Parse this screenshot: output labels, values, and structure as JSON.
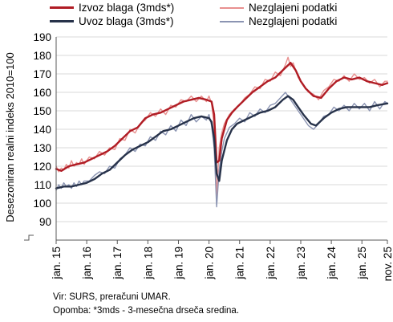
{
  "chart_data": {
    "type": "line",
    "ylabel": "Desezoniran realni indeks 2010=100",
    "ylim": [
      80,
      190
    ],
    "yticks": [
      90,
      100,
      110,
      120,
      130,
      140,
      150,
      160,
      170,
      180,
      190
    ],
    "xticks": [
      "jan. 15",
      "jan. 16",
      "jan. 17",
      "jan. 18",
      "jan. 19",
      "jan. 20",
      "jan. 21",
      "jan. 22",
      "jan. 23",
      "jan. 24",
      "jan. 25",
      "nov. 25"
    ],
    "x_range": [
      "2015-01",
      "2025-11"
    ],
    "grid": true,
    "legend_position": "top",
    "axis_break": true,
    "series": [
      {
        "name": "Izvoz blaga (3mds*)",
        "color": "#b01c24",
        "width": 2.4,
        "points": [
          [
            "2015-01",
            118.5
          ],
          [
            "2015-03",
            117.5
          ],
          [
            "2015-06",
            120
          ],
          [
            "2015-09",
            121
          ],
          [
            "2015-12",
            122
          ],
          [
            "2016-03",
            124
          ],
          [
            "2016-06",
            126
          ],
          [
            "2016-09",
            128
          ],
          [
            "2016-12",
            131
          ],
          [
            "2017-03",
            135
          ],
          [
            "2017-06",
            139
          ],
          [
            "2017-09",
            141
          ],
          [
            "2017-12",
            146
          ],
          [
            "2018-03",
            148
          ],
          [
            "2018-06",
            149
          ],
          [
            "2018-09",
            151
          ],
          [
            "2018-12",
            153
          ],
          [
            "2019-03",
            155
          ],
          [
            "2019-06",
            156
          ],
          [
            "2019-09",
            157
          ],
          [
            "2019-12",
            156
          ],
          [
            "2020-02",
            155
          ],
          [
            "2020-03",
            148
          ],
          [
            "2020-04",
            122
          ],
          [
            "2020-05",
            123
          ],
          [
            "2020-06",
            135
          ],
          [
            "2020-08",
            145
          ],
          [
            "2020-10",
            149
          ],
          [
            "2020-12",
            152
          ],
          [
            "2021-03",
            156
          ],
          [
            "2021-06",
            160
          ],
          [
            "2021-09",
            163
          ],
          [
            "2021-12",
            166
          ],
          [
            "2022-03",
            168
          ],
          [
            "2022-06",
            172
          ],
          [
            "2022-09",
            176
          ],
          [
            "2022-11",
            172
          ],
          [
            "2023-01",
            166
          ],
          [
            "2023-03",
            162
          ],
          [
            "2023-06",
            158
          ],
          [
            "2023-09",
            157
          ],
          [
            "2023-12",
            162
          ],
          [
            "2024-03",
            166
          ],
          [
            "2024-06",
            168
          ],
          [
            "2024-09",
            167
          ],
          [
            "2024-12",
            168
          ],
          [
            "2025-03",
            166
          ],
          [
            "2025-06",
            165
          ],
          [
            "2025-09",
            164
          ],
          [
            "2025-11",
            165
          ]
        ]
      },
      {
        "name": "Nezglajeni podatki",
        "color": "#e8908f",
        "width": 1.4,
        "points": [
          [
            "2015-01",
            120
          ],
          [
            "2015-02",
            117
          ],
          [
            "2015-03",
            119
          ],
          [
            "2015-04",
            118
          ],
          [
            "2015-05",
            121
          ],
          [
            "2015-06",
            119
          ],
          [
            "2015-07",
            123
          ],
          [
            "2015-08",
            120
          ],
          [
            "2015-09",
            122
          ],
          [
            "2015-10",
            121
          ],
          [
            "2015-11",
            124
          ],
          [
            "2015-12",
            121
          ],
          [
            "2016-02",
            125
          ],
          [
            "2016-04",
            124
          ],
          [
            "2016-06",
            128
          ],
          [
            "2016-08",
            126
          ],
          [
            "2016-10",
            130
          ],
          [
            "2016-12",
            129
          ],
          [
            "2017-02",
            135
          ],
          [
            "2017-04",
            134
          ],
          [
            "2017-06",
            140
          ],
          [
            "2017-08",
            138
          ],
          [
            "2017-10",
            143
          ],
          [
            "2017-12",
            145
          ],
          [
            "2018-02",
            149
          ],
          [
            "2018-04",
            147
          ],
          [
            "2018-06",
            151
          ],
          [
            "2018-08",
            148
          ],
          [
            "2018-10",
            153
          ],
          [
            "2018-12",
            152
          ],
          [
            "2019-02",
            156
          ],
          [
            "2019-04",
            155
          ],
          [
            "2019-06",
            158
          ],
          [
            "2019-08",
            155
          ],
          [
            "2019-10",
            158
          ],
          [
            "2019-12",
            155
          ],
          [
            "2020-01",
            158
          ],
          [
            "2020-02",
            154
          ],
          [
            "2020-03",
            142
          ],
          [
            "2020-04",
            104
          ],
          [
            "2020-05",
            130
          ],
          [
            "2020-06",
            138
          ],
          [
            "2020-07",
            143
          ],
          [
            "2020-09",
            148
          ],
          [
            "2020-11",
            151
          ],
          [
            "2021-01",
            153
          ],
          [
            "2021-03",
            157
          ],
          [
            "2021-05",
            159
          ],
          [
            "2021-07",
            163
          ],
          [
            "2021-09",
            162
          ],
          [
            "2021-11",
            167
          ],
          [
            "2022-01",
            166
          ],
          [
            "2022-03",
            171
          ],
          [
            "2022-05",
            169
          ],
          [
            "2022-07",
            175
          ],
          [
            "2022-08",
            179
          ],
          [
            "2022-09",
            174
          ],
          [
            "2022-10",
            176
          ],
          [
            "2022-12",
            168
          ],
          [
            "2023-02",
            164
          ],
          [
            "2023-04",
            160
          ],
          [
            "2023-06",
            159
          ],
          [
            "2023-08",
            156
          ],
          [
            "2023-10",
            161
          ],
          [
            "2023-12",
            163
          ],
          [
            "2024-02",
            167
          ],
          [
            "2024-04",
            166
          ],
          [
            "2024-06",
            169
          ],
          [
            "2024-08",
            166
          ],
          [
            "2024-10",
            170
          ],
          [
            "2024-12",
            167
          ],
          [
            "2025-02",
            168
          ],
          [
            "2025-04",
            165
          ],
          [
            "2025-06",
            167
          ],
          [
            "2025-08",
            163
          ],
          [
            "2025-10",
            166
          ],
          [
            "2025-11",
            166
          ]
        ]
      },
      {
        "name": "Uvoz blaga (3mds*)",
        "color": "#27324a",
        "width": 2.4,
        "points": [
          [
            "2015-01",
            108
          ],
          [
            "2015-04",
            109
          ],
          [
            "2015-07",
            109
          ],
          [
            "2015-10",
            110
          ],
          [
            "2016-01",
            111
          ],
          [
            "2016-04",
            113
          ],
          [
            "2016-07",
            116
          ],
          [
            "2016-10",
            118
          ],
          [
            "2017-01",
            122
          ],
          [
            "2017-04",
            126
          ],
          [
            "2017-07",
            129
          ],
          [
            "2017-10",
            131
          ],
          [
            "2018-01",
            133
          ],
          [
            "2018-04",
            136
          ],
          [
            "2018-07",
            139
          ],
          [
            "2018-10",
            140
          ],
          [
            "2019-01",
            142
          ],
          [
            "2019-04",
            144
          ],
          [
            "2019-07",
            146
          ],
          [
            "2019-10",
            147
          ],
          [
            "2020-01",
            146
          ],
          [
            "2020-02",
            144
          ],
          [
            "2020-03",
            135
          ],
          [
            "2020-04",
            116
          ],
          [
            "2020-05",
            112
          ],
          [
            "2020-06",
            123
          ],
          [
            "2020-08",
            134
          ],
          [
            "2020-10",
            140
          ],
          [
            "2020-12",
            143
          ],
          [
            "2021-03",
            145
          ],
          [
            "2021-06",
            147
          ],
          [
            "2021-09",
            149
          ],
          [
            "2021-12",
            150
          ],
          [
            "2022-03",
            152
          ],
          [
            "2022-06",
            156
          ],
          [
            "2022-08",
            158
          ],
          [
            "2022-10",
            156
          ],
          [
            "2022-12",
            152
          ],
          [
            "2023-02",
            148
          ],
          [
            "2023-05",
            143
          ],
          [
            "2023-07",
            142
          ],
          [
            "2023-10",
            146
          ],
          [
            "2024-01",
            149
          ],
          [
            "2024-04",
            151
          ],
          [
            "2024-07",
            152
          ],
          [
            "2024-10",
            152
          ],
          [
            "2025-01",
            152
          ],
          [
            "2025-04",
            152
          ],
          [
            "2025-07",
            153
          ],
          [
            "2025-11",
            154
          ]
        ]
      },
      {
        "name": "Nezglajeni podatki",
        "color": "#8b94b2",
        "width": 1.4,
        "points": [
          [
            "2015-01",
            107
          ],
          [
            "2015-02",
            110
          ],
          [
            "2015-03",
            108
          ],
          [
            "2015-04",
            111
          ],
          [
            "2015-05",
            109
          ],
          [
            "2015-06",
            110
          ],
          [
            "2015-07",
            108
          ],
          [
            "2015-08",
            111
          ],
          [
            "2015-09",
            109
          ],
          [
            "2015-10",
            112
          ],
          [
            "2015-11",
            110
          ],
          [
            "2015-12",
            112
          ],
          [
            "2016-02",
            112
          ],
          [
            "2016-04",
            115
          ],
          [
            "2016-06",
            117
          ],
          [
            "2016-08",
            116
          ],
          [
            "2016-10",
            120
          ],
          [
            "2016-12",
            119
          ],
          [
            "2017-02",
            124
          ],
          [
            "2017-04",
            126
          ],
          [
            "2017-06",
            130
          ],
          [
            "2017-08",
            128
          ],
          [
            "2017-10",
            132
          ],
          [
            "2017-12",
            131
          ],
          [
            "2018-02",
            136
          ],
          [
            "2018-04",
            134
          ],
          [
            "2018-06",
            139
          ],
          [
            "2018-08",
            137
          ],
          [
            "2018-10",
            142
          ],
          [
            "2018-12",
            139
          ],
          [
            "2019-02",
            145
          ],
          [
            "2019-04",
            142
          ],
          [
            "2019-06",
            148
          ],
          [
            "2019-08",
            144
          ],
          [
            "2019-10",
            147
          ],
          [
            "2019-12",
            145
          ],
          [
            "2020-01",
            148
          ],
          [
            "2020-02",
            142
          ],
          [
            "2020-03",
            130
          ],
          [
            "2020-04",
            98
          ],
          [
            "2020-05",
            118
          ],
          [
            "2020-06",
            128
          ],
          [
            "2020-07",
            135
          ],
          [
            "2020-09",
            141
          ],
          [
            "2020-11",
            143
          ],
          [
            "2021-01",
            146
          ],
          [
            "2021-03",
            144
          ],
          [
            "2021-05",
            149
          ],
          [
            "2021-07",
            147
          ],
          [
            "2021-09",
            151
          ],
          [
            "2021-11",
            149
          ],
          [
            "2022-01",
            153
          ],
          [
            "2022-03",
            154
          ],
          [
            "2022-05",
            157
          ],
          [
            "2022-07",
            160
          ],
          [
            "2022-08",
            158
          ],
          [
            "2022-10",
            154
          ],
          [
            "2022-12",
            150
          ],
          [
            "2023-02",
            146
          ],
          [
            "2023-04",
            142
          ],
          [
            "2023-06",
            140
          ],
          [
            "2023-08",
            143
          ],
          [
            "2023-10",
            147
          ],
          [
            "2023-12",
            148
          ],
          [
            "2024-02",
            152
          ],
          [
            "2024-04",
            150
          ],
          [
            "2024-06",
            153
          ],
          [
            "2024-08",
            150
          ],
          [
            "2024-10",
            154
          ],
          [
            "2024-12",
            151
          ],
          [
            "2025-02",
            154
          ],
          [
            "2025-04",
            150
          ],
          [
            "2025-06",
            155
          ],
          [
            "2025-08",
            151
          ],
          [
            "2025-10",
            155
          ],
          [
            "2025-11",
            154
          ]
        ]
      }
    ]
  },
  "legend": [
    {
      "label": "Izvoz blaga (3mds*)",
      "color": "#b01c24",
      "weight": "thick"
    },
    {
      "label": "Nezglajeni podatki",
      "color": "#e8908f",
      "weight": "thin"
    },
    {
      "label": "Uvoz blaga (3mds*)",
      "color": "#27324a",
      "weight": "thick"
    },
    {
      "label": "Nezglajeni podatki",
      "color": "#8b94b2",
      "weight": "thin"
    }
  ],
  "notes": {
    "source": "Vir: SURS, preračuni UMAR.",
    "footnote": "Opomba: *3mds - 3-mesečna drseča sredina."
  }
}
